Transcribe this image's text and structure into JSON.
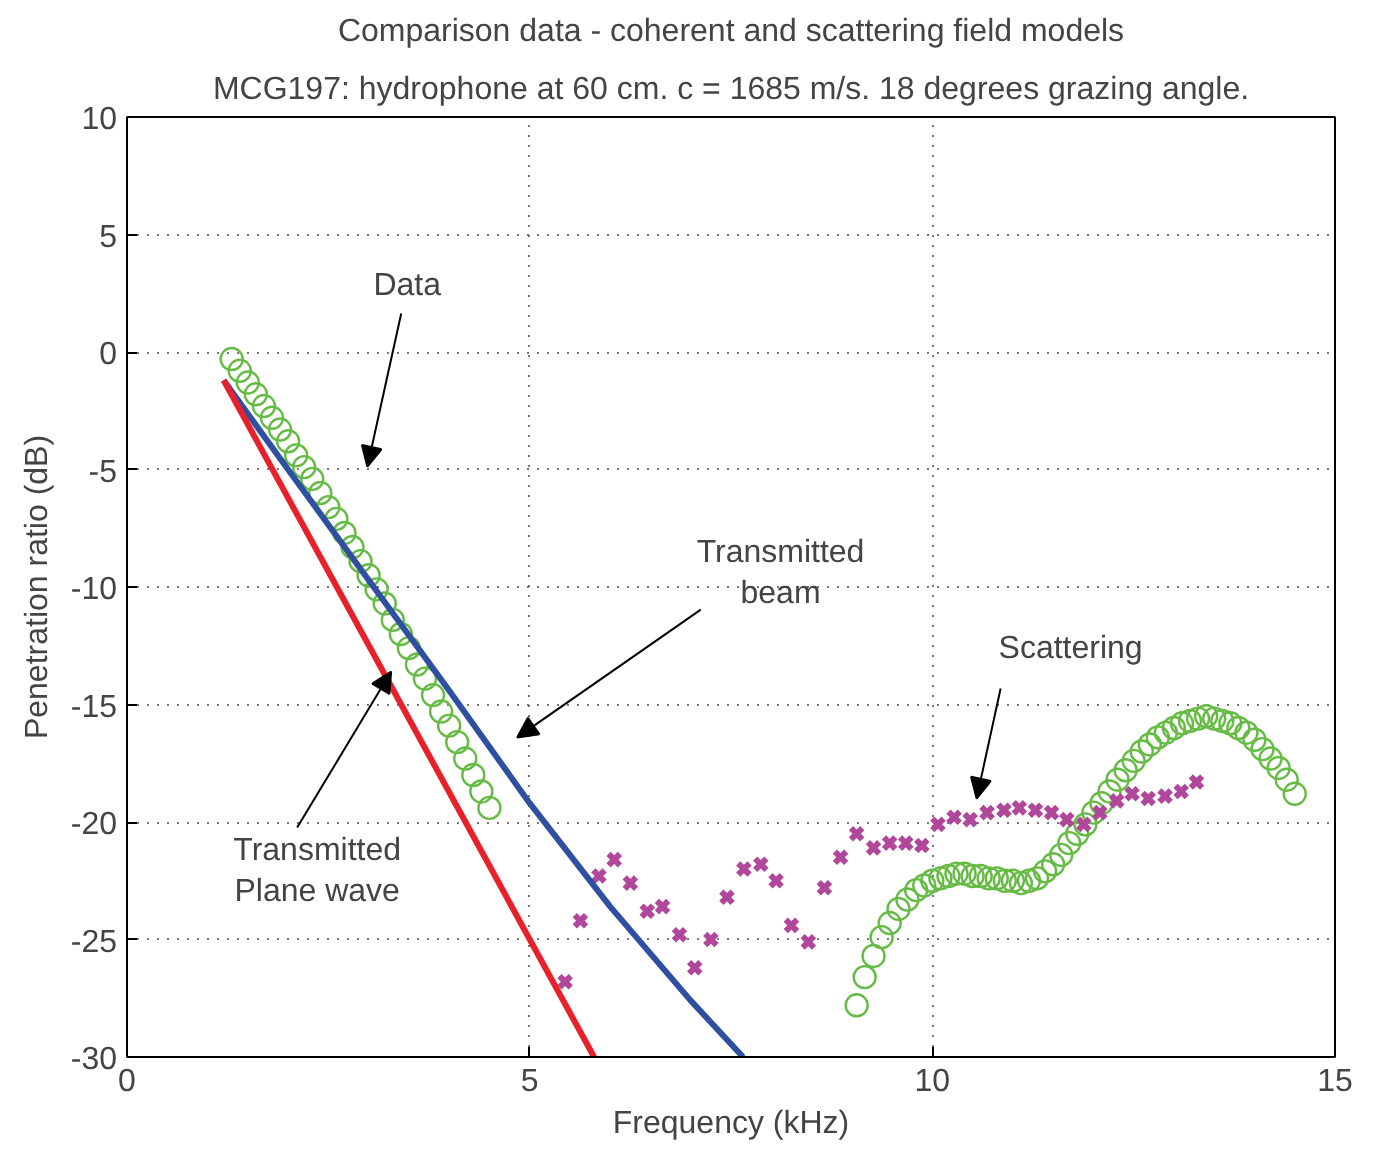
{
  "chart_data": {
    "type": "scatter",
    "title": "Comparison data - coherent and scattering field models",
    "subtitle": "MCG197: hydrophone at 60 cm. c = 1685 m/s. 18 degrees grazing angle.",
    "xlabel": "Frequency (kHz)",
    "ylabel": "Penetration ratio (dB)",
    "xlim": [
      0,
      15
    ],
    "ylim": [
      -30,
      10
    ],
    "xticks": [
      0,
      5,
      10,
      15
    ],
    "yticks": [
      -30,
      -25,
      -20,
      -15,
      -10,
      -5,
      0,
      5,
      10
    ],
    "grid": true,
    "series": [
      {
        "marker": "circle",
        "color": "#66bb44",
        "x": [
          1.3,
          1.4,
          1.5,
          1.6,
          1.7,
          1.8,
          1.9,
          2.0,
          2.1,
          2.2,
          2.3,
          2.4,
          2.5,
          2.6,
          2.7,
          2.8,
          2.9,
          3.0,
          3.1,
          3.2,
          3.3,
          3.4,
          3.5,
          3.6,
          3.7,
          3.8,
          3.9,
          4.0,
          4.1,
          4.2,
          4.3,
          4.4,
          4.5,
          9.06,
          9.16,
          9.27,
          9.37,
          9.47,
          9.58,
          9.69,
          9.8,
          9.9,
          10.0,
          10.1,
          10.2,
          10.3,
          10.4,
          10.5,
          10.6,
          10.7,
          10.8,
          10.9,
          11.0,
          11.1,
          11.2,
          11.3,
          11.4,
          11.5,
          11.6,
          11.7,
          11.8,
          11.9,
          12.0,
          12.1,
          12.2,
          12.3,
          12.4,
          12.5,
          12.6,
          12.7,
          12.8,
          12.9,
          13.0,
          13.1,
          13.2,
          13.3,
          13.4,
          13.5,
          13.6,
          13.7,
          13.8,
          13.9,
          14.0,
          14.1,
          14.2,
          14.3,
          14.4,
          14.5
        ],
        "values": [
          -0.3,
          -0.8,
          -1.3,
          -1.8,
          -2.3,
          -2.8,
          -3.3,
          -3.8,
          -4.4,
          -4.9,
          -5.4,
          -6.0,
          -6.6,
          -7.1,
          -7.7,
          -8.3,
          -8.9,
          -9.5,
          -10.1,
          -10.7,
          -11.4,
          -12.0,
          -12.6,
          -13.3,
          -13.9,
          -14.6,
          -15.3,
          -15.9,
          -16.6,
          -17.3,
          -18.0,
          -18.7,
          -19.4,
          -27.8,
          -26.6,
          -25.7,
          -24.9,
          -24.3,
          -23.7,
          -23.3,
          -22.9,
          -22.7,
          -22.5,
          -22.4,
          -22.3,
          -22.2,
          -22.2,
          -22.3,
          -22.3,
          -22.4,
          -22.4,
          -22.5,
          -22.5,
          -22.6,
          -22.5,
          -22.4,
          -22.1,
          -21.8,
          -21.4,
          -20.9,
          -20.5,
          -20.1,
          -19.6,
          -19.2,
          -18.7,
          -18.2,
          -17.8,
          -17.4,
          -17.0,
          -16.7,
          -16.4,
          -16.2,
          -16.0,
          -15.8,
          -15.7,
          -15.6,
          -15.5,
          -15.6,
          -15.7,
          -15.8,
          -16.0,
          -16.2,
          -16.5,
          -16.9,
          -17.3,
          -17.7,
          -18.2,
          -18.8
        ]
      },
      {
        "marker": "cross",
        "color": "#b0479a",
        "x": [
          5.44,
          5.63,
          5.86,
          6.05,
          6.25,
          6.46,
          6.65,
          6.86,
          7.05,
          7.25,
          7.45,
          7.66,
          7.87,
          8.06,
          8.25,
          8.46,
          8.66,
          8.86,
          9.06,
          9.27,
          9.47,
          9.67,
          9.87,
          10.07,
          10.27,
          10.47,
          10.68,
          10.89,
          11.08,
          11.28,
          11.48,
          11.67,
          11.88,
          12.08,
          12.29,
          12.48,
          12.68,
          12.89,
          13.09,
          13.28
        ],
        "values": [
          -26.8,
          -24.2,
          -22.3,
          -21.6,
          -22.6,
          -23.8,
          -23.6,
          -24.8,
          -26.2,
          -25.0,
          -23.2,
          -22.0,
          -21.8,
          -22.5,
          -24.4,
          -25.1,
          -22.8,
          -21.5,
          -20.5,
          -21.1,
          -20.9,
          -20.9,
          -21.0,
          -20.1,
          -19.8,
          -19.9,
          -19.6,
          -19.5,
          -19.4,
          -19.5,
          -19.6,
          -19.9,
          -20.1,
          -19.6,
          -19.1,
          -18.8,
          -19.0,
          -18.9,
          -18.7,
          -18.3
        ]
      },
      {
        "type": "line",
        "line_style": "solid",
        "color": "#2f4fa0",
        "x": [
          1.2,
          2,
          3,
          4,
          5,
          6,
          7,
          7.65
        ],
        "values": [
          -1.2,
          -5.0,
          -9.7,
          -14.4,
          -19.2,
          -23.6,
          -27.6,
          -30
        ]
      },
      {
        "type": "line",
        "line_style": "solid",
        "color": "#e8202a",
        "x": [
          1.2,
          5.8
        ],
        "values": [
          -1.2,
          -30
        ]
      }
    ],
    "annotations": [
      "Data",
      "Transmitted\nbeam",
      {
        "text": "Scattering",
        "x": 10.55,
        "y": -19.0
      },
      {
        "text": "Transmitted\nPlane wave",
        "x": 3.28,
        "y": -13.6
      }
    ]
  }
}
